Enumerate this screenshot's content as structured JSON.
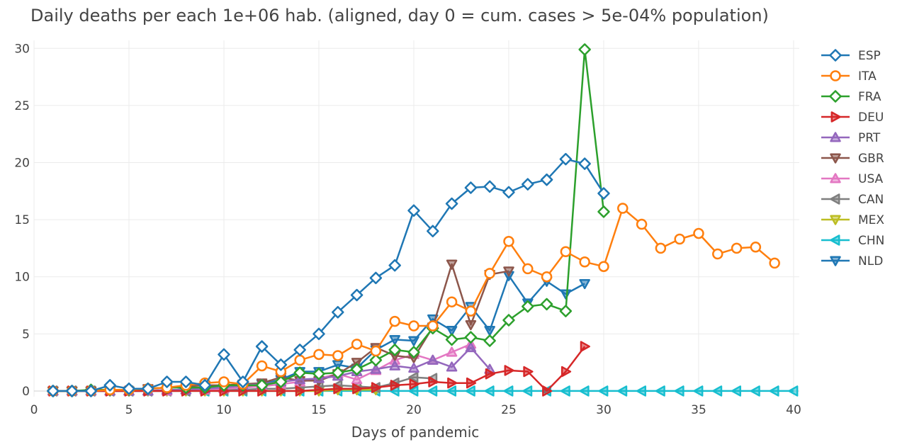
{
  "chart_data": {
    "type": "line",
    "title": "Daily deaths per each 1e+06 hab. (aligned, day 0 = cum. cases > 5e-04% population)",
    "xlabel": "Days of pandemic",
    "ylabel": "",
    "xlim": [
      0,
      40.3
    ],
    "ylim": [
      -0.5,
      30.7
    ],
    "xticks": [
      0,
      5,
      10,
      15,
      20,
      25,
      30,
      35,
      40
    ],
    "yticks": [
      0,
      5,
      10,
      15,
      20,
      25,
      30
    ],
    "grid": true,
    "legend_position": "right",
    "series": [
      {
        "name": "ESP",
        "color": "#1f77b4",
        "marker": "diamond",
        "x": [
          1,
          2,
          3,
          4,
          5,
          6,
          7,
          8,
          9,
          10,
          11,
          12,
          13,
          14,
          15,
          16,
          17,
          18,
          19,
          20,
          21,
          22,
          23,
          24,
          25,
          26,
          27,
          28,
          29,
          30
        ],
        "y": [
          0,
          0,
          0,
          0.5,
          0.2,
          0.2,
          0.8,
          0.8,
          0.5,
          3.2,
          0.8,
          3.9,
          2.3,
          3.6,
          5.0,
          6.9,
          8.4,
          9.9,
          11.0,
          15.8,
          14.0,
          16.4,
          17.8,
          17.9,
          17.4,
          18.1,
          18.5,
          20.3,
          19.9,
          17.3
        ]
      },
      {
        "name": "ITA",
        "color": "#ff7f0e",
        "marker": "circle",
        "x": [
          1,
          2,
          3,
          4,
          5,
          6,
          7,
          8,
          9,
          10,
          11,
          12,
          13,
          14,
          15,
          16,
          17,
          18,
          19,
          20,
          21,
          22,
          23,
          24,
          25,
          26,
          27,
          28,
          29,
          30,
          31,
          32,
          33,
          34,
          35,
          36,
          37,
          38,
          39
        ],
        "y": [
          0,
          0,
          0,
          0.1,
          0.1,
          0.2,
          0.3,
          0.5,
          0.7,
          0.8,
          0.6,
          2.2,
          1.7,
          2.7,
          3.2,
          3.1,
          4.1,
          3.5,
          6.1,
          5.7,
          5.7,
          7.8,
          7.0,
          10.3,
          13.1,
          10.7,
          10.0,
          12.2,
          11.3,
          10.9,
          16.0,
          14.6,
          12.5,
          13.3,
          13.8,
          12.0,
          12.5,
          12.6,
          11.2
        ]
      },
      {
        "name": "FRA",
        "color": "#2ca02c",
        "marker": "diamond",
        "x": [
          1,
          2,
          3,
          4,
          5,
          6,
          7,
          8,
          9,
          10,
          11,
          12,
          13,
          14,
          15,
          16,
          17,
          18,
          19,
          20,
          21,
          22,
          23,
          24,
          25,
          26,
          27,
          28,
          29,
          30
        ],
        "y": [
          0,
          0,
          0.1,
          0.1,
          0.1,
          0.2,
          0.3,
          0.3,
          0.3,
          0.5,
          0.5,
          0.5,
          0.8,
          1.6,
          1.5,
          1.6,
          1.9,
          2.7,
          3.6,
          3.4,
          5.5,
          4.5,
          4.7,
          4.4,
          6.2,
          7.4,
          7.6,
          7.0,
          29.9,
          15.7
        ]
      },
      {
        "name": "DEU",
        "color": "#d62728",
        "marker": "triangle-right",
        "x": [
          1,
          2,
          3,
          4,
          5,
          6,
          7,
          8,
          9,
          10,
          11,
          12,
          13,
          14,
          15,
          16,
          17,
          18,
          19,
          20,
          21,
          22,
          23,
          24,
          25,
          26,
          27,
          28,
          29
        ],
        "y": [
          0,
          0,
          0,
          0,
          0,
          0,
          0,
          0,
          0,
          0,
          0,
          0,
          0,
          0,
          0.1,
          0.2,
          0.2,
          0.3,
          0.5,
          0.6,
          0.8,
          0.7,
          0.7,
          1.5,
          1.8,
          1.7,
          0,
          1.7,
          3.9
        ]
      },
      {
        "name": "PRT",
        "color": "#9467bd",
        "marker": "triangle-up",
        "x": [
          1,
          2,
          3,
          4,
          5,
          6,
          7,
          8,
          9,
          10,
          11,
          12,
          13,
          14,
          15,
          16,
          17,
          18,
          19,
          20,
          21,
          22,
          23,
          24
        ],
        "y": [
          0,
          0,
          0,
          0,
          0,
          0,
          0.1,
          0.1,
          0.2,
          0.3,
          0.5,
          0.6,
          0.8,
          1.0,
          1.1,
          1.3,
          1.7,
          1.9,
          2.2,
          2.0,
          2.7,
          2.1,
          3.8,
          1.9
        ]
      },
      {
        "name": "GBR",
        "color": "#8c564b",
        "marker": "triangle-down",
        "x": [
          1,
          2,
          3,
          4,
          5,
          6,
          7,
          8,
          9,
          10,
          11,
          12,
          13,
          14,
          15,
          16,
          17,
          18,
          19,
          20,
          21,
          22,
          23,
          24,
          25
        ],
        "y": [
          0,
          0,
          0,
          0,
          0,
          0.2,
          0.3,
          0.4,
          0.5,
          0.5,
          0.6,
          0.7,
          1.2,
          0.9,
          0.9,
          1.5,
          2.5,
          3.8,
          3.1,
          2.9,
          5.6,
          11.1,
          5.8,
          10.2,
          10.5
        ]
      },
      {
        "name": "USA",
        "color": "#e377c2",
        "marker": "triangle-up",
        "x": [
          1,
          2,
          3,
          4,
          5,
          6,
          7,
          8,
          9,
          10,
          11,
          12,
          13,
          14,
          15,
          16,
          17,
          18,
          19,
          20,
          21,
          22,
          23
        ],
        "y": [
          0,
          0,
          0,
          0,
          0,
          0,
          0,
          0.1,
          0.1,
          0.2,
          0.3,
          0.4,
          0.6,
          0.8,
          1.1,
          1.5,
          1.0,
          1.8,
          2.7,
          3.2,
          2.7,
          3.4,
          4.1
        ]
      },
      {
        "name": "CAN",
        "color": "#7f7f7f",
        "marker": "triangle-left",
        "x": [
          1,
          2,
          3,
          4,
          5,
          6,
          7,
          8,
          9,
          10,
          11,
          12,
          13,
          14,
          15,
          16,
          17,
          18,
          19,
          20,
          21
        ],
        "y": [
          0,
          0,
          0,
          0,
          0,
          0,
          0,
          0,
          0.1,
          0.1,
          0.1,
          0.2,
          0.2,
          0.3,
          0.4,
          0.5,
          0.4,
          0.3,
          0.7,
          1.2,
          1.1
        ]
      },
      {
        "name": "MEX",
        "color": "#bcbd22",
        "marker": "triangle-down",
        "x": [
          1,
          2,
          3,
          4,
          5,
          6,
          7,
          8,
          9,
          10,
          11,
          12,
          13,
          14,
          15,
          16,
          17,
          18
        ],
        "y": [
          0,
          0,
          0,
          0,
          0,
          0,
          0,
          0,
          0,
          0,
          0,
          0,
          0,
          0,
          0,
          0.1,
          0.1,
          0.1
        ]
      },
      {
        "name": "CHN",
        "color": "#17becf",
        "marker": "triangle-left",
        "x": [
          1,
          2,
          3,
          4,
          5,
          6,
          7,
          8,
          9,
          10,
          11,
          12,
          13,
          14,
          15,
          16,
          17,
          18,
          19,
          20,
          21,
          22,
          23,
          24,
          25,
          26,
          27,
          28,
          29,
          30,
          31,
          32,
          33,
          34,
          35,
          36,
          37,
          38,
          39,
          40
        ],
        "y": [
          0,
          0,
          0,
          0,
          0,
          0,
          0,
          0,
          0,
          0,
          0,
          0,
          0,
          0,
          0,
          0,
          0,
          0,
          0,
          0,
          0,
          0,
          0,
          0,
          0,
          0,
          0,
          0,
          0,
          0,
          0,
          0,
          0,
          0,
          0,
          0,
          0,
          0,
          0,
          0
        ]
      },
      {
        "name": "NLD",
        "color": "#1f77b4",
        "marker": "triangle-down",
        "x": [
          1,
          2,
          3,
          4,
          5,
          6,
          7,
          8,
          9,
          10,
          11,
          12,
          13,
          14,
          15,
          16,
          17,
          18,
          19,
          20,
          21,
          22,
          23,
          24,
          25,
          26,
          27,
          28,
          29
        ],
        "y": [
          0,
          0,
          0,
          0,
          0,
          0,
          0,
          0.2,
          0.3,
          0.3,
          0.3,
          0.6,
          1.0,
          1.7,
          1.7,
          2.3,
          2.0,
          3.6,
          4.5,
          4.4,
          6.3,
          5.3,
          7.4,
          5.3,
          10.1,
          7.7,
          9.6,
          8.5,
          9.4
        ]
      }
    ]
  }
}
